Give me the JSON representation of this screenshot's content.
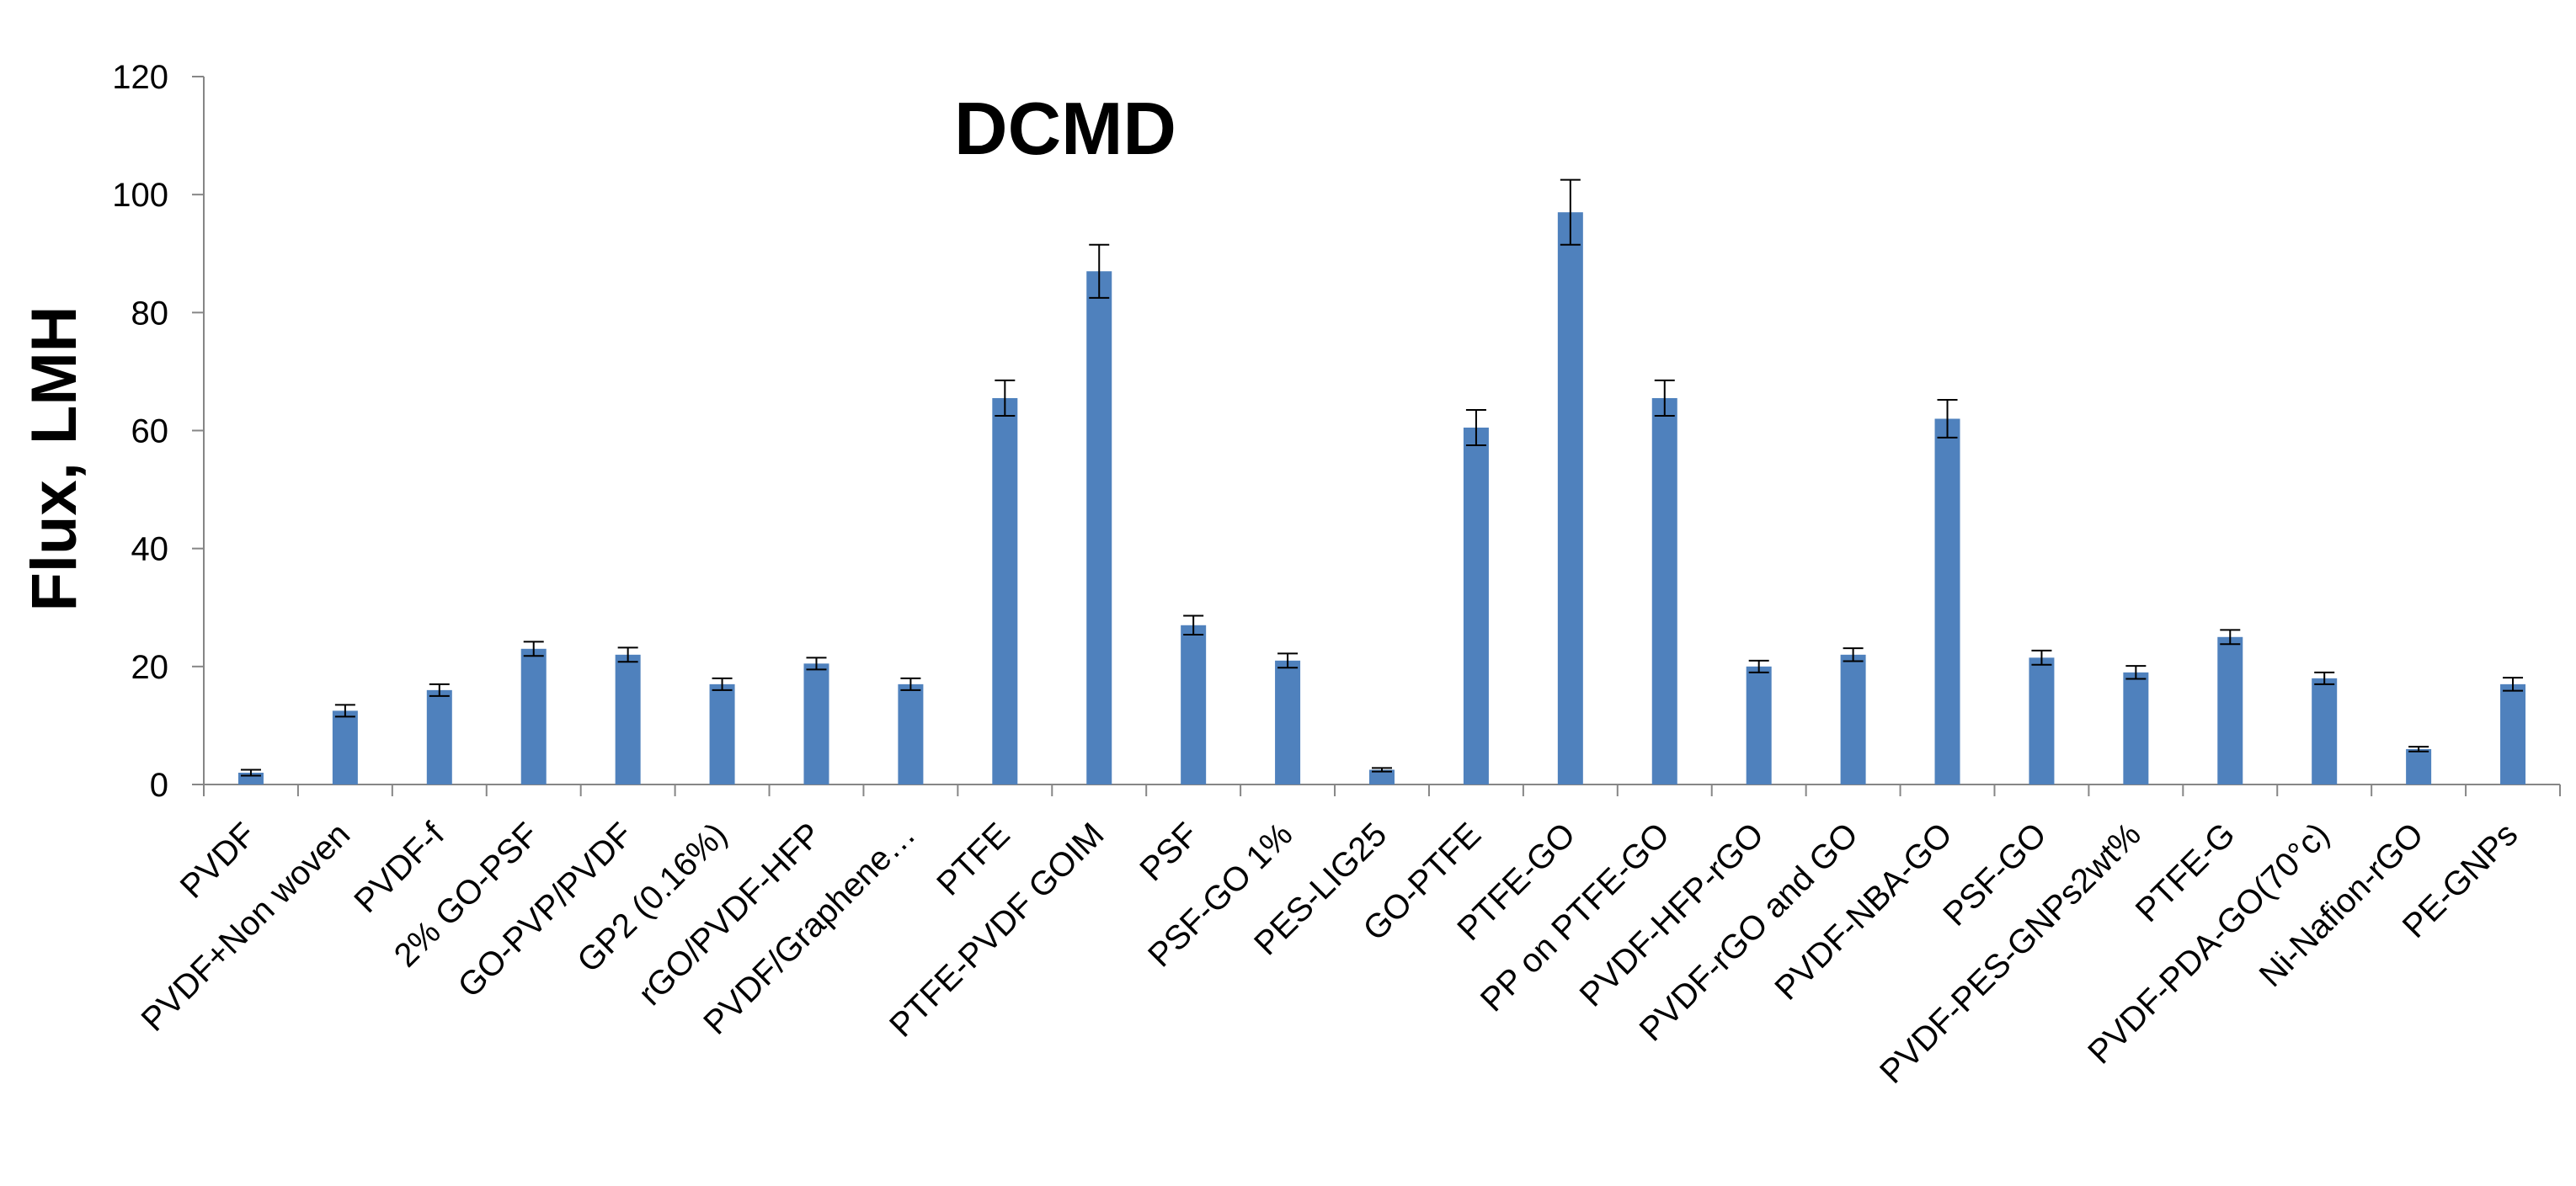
{
  "chart_data": {
    "type": "bar",
    "title": "DCMD",
    "xlabel": "",
    "ylabel": "Flux, LMH",
    "ylim": [
      0,
      120
    ],
    "yticks": [
      "0",
      "20",
      "40",
      "60",
      "80",
      "100",
      "120"
    ],
    "grid": false,
    "legend": "none",
    "bar_color": "#4F81BD",
    "error_bar_color": "#000000",
    "categories": [
      "PVDF",
      "PVDF+Non woven",
      "PVDF-f",
      "2% GO-PSF",
      "GO-PVP/PVDF",
      "GP2 (0.16%)",
      "rGO/PVDF-HFP",
      "PVDF/Graphene…",
      "PTFE",
      "PTFE-PVDF GOIM",
      "PSF",
      "PSF-GO 1%",
      "PES-LIG25",
      "GO-PTFE",
      "PTFE-GO",
      "PP on PTFE-GO",
      "PVDF-HFP-rGO",
      "PVDF-rGO and GO",
      "PVDF-NBA-GO",
      "PSF-GO",
      "PVDF-PES-GNPs2wt%",
      "PTFE-G",
      "PVDF-PDA-GO(70°c)",
      "Ni-Nafion-rGO",
      "PE-GNPs"
    ],
    "series": [
      {
        "name": "Flux",
        "values": [
          2,
          12.5,
          16,
          23,
          22,
          17,
          20.5,
          17,
          65.5,
          87,
          27,
          21,
          2.5,
          60.5,
          97,
          65.5,
          20,
          22,
          62,
          21.5,
          19,
          25,
          18,
          6,
          17
        ],
        "errors": [
          0.5,
          1,
          1,
          1.2,
          1.2,
          1,
          1,
          1,
          3,
          4.5,
          1.6,
          1.2,
          0.3,
          3,
          5.5,
          3,
          1,
          1.1,
          3.2,
          1.2,
          1.1,
          1.2,
          1,
          0.4,
          1.1
        ]
      }
    ]
  }
}
